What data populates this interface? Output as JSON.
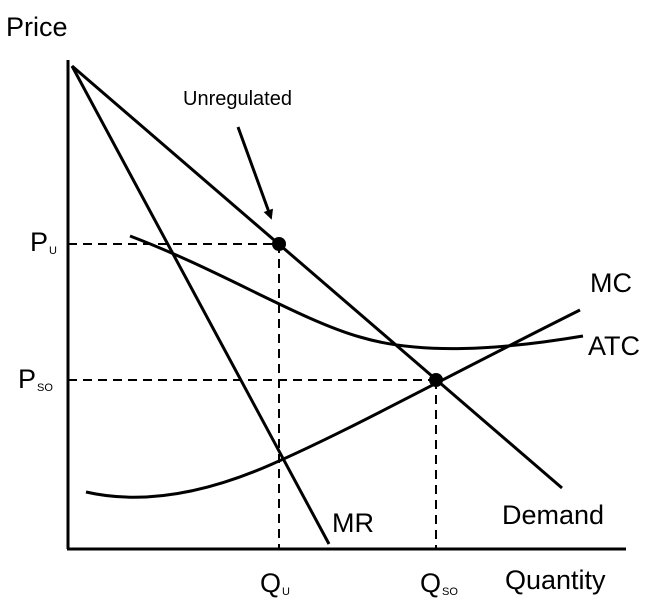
{
  "axes": {
    "y_label": "Price",
    "x_label": "Quantity"
  },
  "y_ticks": [
    {
      "main": "P",
      "sub": "U"
    },
    {
      "main": "P",
      "sub": "SO"
    }
  ],
  "x_ticks": [
    {
      "main": "Q",
      "sub": "U"
    },
    {
      "main": "Q",
      "sub": "SO"
    }
  ],
  "curves": {
    "demand": "Demand",
    "mr": "MR",
    "mc": "MC",
    "atc": "ATC"
  },
  "annotation": "Unregulated",
  "colors": {
    "ink": "#000000",
    "background": "#ffffff"
  }
}
